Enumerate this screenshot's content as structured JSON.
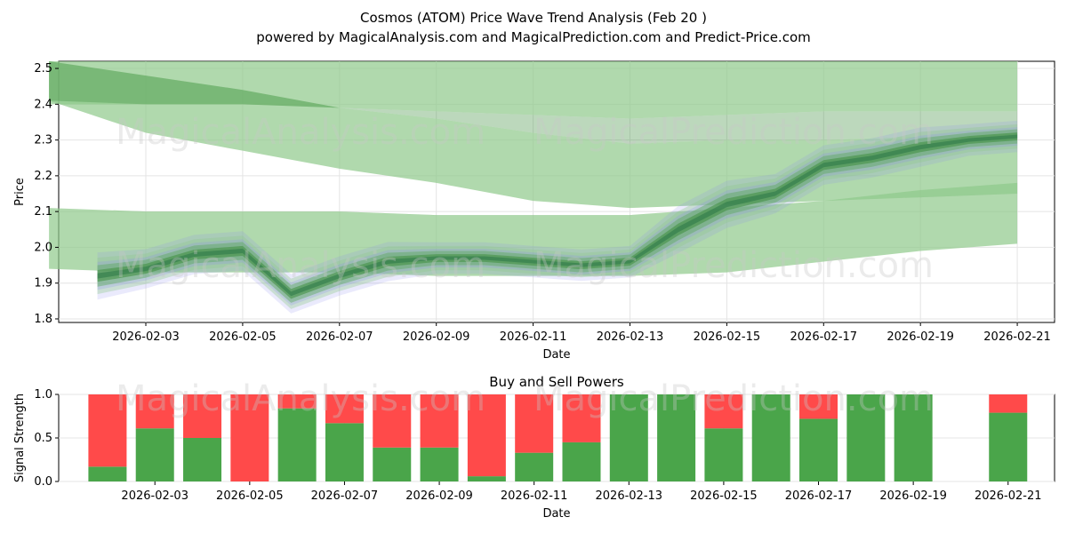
{
  "title_line1": "Cosmos (ATOM) Price Wave Trend Analysis (Feb 20 )",
  "title_line2": "powered by MagicalAnalysis.com and MagicalPrediction.com and Predict-Price.com",
  "watermarks": [
    "MagicalAnalysis.com",
    "MagicalPrediction.com"
  ],
  "colors": {
    "green_band": "#8fc98a",
    "dark_green": "#3e8e3e",
    "blue": "#8a8af0",
    "buy": "#4aa54a",
    "sell": "#ff4a4a"
  },
  "chart_data": [
    {
      "type": "area",
      "title": "Cosmos (ATOM) Price Wave Trend Analysis (Feb 20 )",
      "xlabel": "Date",
      "ylabel": "Price",
      "ylim": [
        1.79,
        2.52
      ],
      "xlim": [
        "2026-02-01",
        "2026-02-21"
      ],
      "yticks": [
        1.8,
        1.9,
        2.0,
        2.1,
        2.2,
        2.3,
        2.4,
        2.5
      ],
      "xticks": [
        "2026-02-03",
        "2026-02-05",
        "2026-02-07",
        "2026-02-09",
        "2026-02-11",
        "2026-02-13",
        "2026-02-15",
        "2026-02-17",
        "2026-02-19",
        "2026-02-21"
      ],
      "dates": [
        "2026-02-02",
        "2026-02-03",
        "2026-02-04",
        "2026-02-05",
        "2026-02-06",
        "2026-02-07",
        "2026-02-08",
        "2026-02-09",
        "2026-02-10",
        "2026-02-11",
        "2026-02-12",
        "2026-02-13",
        "2026-02-14",
        "2026-02-15",
        "2026-02-16",
        "2026-02-17",
        "2026-02-18",
        "2026-02-19",
        "2026-02-20",
        "2026-02-21"
      ],
      "price_wave": [
        1.92,
        1.94,
        1.98,
        1.99,
        1.87,
        1.92,
        1.96,
        1.97,
        1.97,
        1.96,
        1.95,
        1.96,
        2.05,
        2.12,
        2.15,
        2.23,
        2.25,
        2.28,
        2.3,
        2.31
      ],
      "wave_spread": [
        0.06,
        0.05,
        0.05,
        0.05,
        0.05,
        0.05,
        0.05,
        0.04,
        0.04,
        0.04,
        0.04,
        0.04,
        0.06,
        0.06,
        0.05,
        0.05,
        0.05,
        0.05,
        0.04,
        0.04
      ],
      "bands": [
        {
          "name": "upper band",
          "x": [
            "2026-02-01",
            "2026-02-03",
            "2026-02-05",
            "2026-02-07",
            "2026-02-09",
            "2026-02-11",
            "2026-02-13",
            "2026-02-15",
            "2026-02-17",
            "2026-02-19",
            "2026-02-21"
          ],
          "upper": [
            2.52,
            2.52,
            2.52,
            2.52,
            2.52,
            2.52,
            2.52,
            2.52,
            2.52,
            2.52,
            2.52
          ],
          "lower": [
            2.4,
            2.4,
            2.4,
            2.39,
            2.38,
            2.37,
            2.36,
            2.37,
            2.38,
            2.38,
            2.38
          ]
        },
        {
          "name": "descending band",
          "x": [
            "2026-02-01",
            "2026-02-03",
            "2026-02-05",
            "2026-02-07",
            "2026-02-09",
            "2026-02-11",
            "2026-02-13",
            "2026-02-15",
            "2026-02-17",
            "2026-02-19",
            "2026-02-21"
          ],
          "upper": [
            2.52,
            2.48,
            2.44,
            2.39,
            2.36,
            2.32,
            2.29,
            2.3,
            2.3,
            2.31,
            2.32
          ],
          "lower": [
            2.41,
            2.32,
            2.27,
            2.22,
            2.18,
            2.13,
            2.11,
            2.12,
            2.13,
            2.14,
            2.15
          ]
        },
        {
          "name": "lower band",
          "x": [
            "2026-02-01",
            "2026-02-03",
            "2026-02-05",
            "2026-02-07",
            "2026-02-09",
            "2026-02-11",
            "2026-02-13",
            "2026-02-15",
            "2026-02-17",
            "2026-02-19",
            "2026-02-21"
          ],
          "upper": [
            2.11,
            2.1,
            2.1,
            2.1,
            2.09,
            2.09,
            2.09,
            2.11,
            2.13,
            2.16,
            2.18
          ],
          "lower": [
            1.94,
            1.93,
            1.93,
            1.93,
            1.92,
            1.92,
            1.92,
            1.93,
            1.96,
            1.99,
            2.01
          ]
        }
      ]
    },
    {
      "type": "bar",
      "title": "Buy and Sell Powers",
      "xlabel": "Date",
      "ylabel": "Signal Strength",
      "ylim": [
        0,
        1.0
      ],
      "yticks": [
        "0.0",
        "0.5",
        "1.0"
      ],
      "xticks": [
        "2026-02-03",
        "2026-02-05",
        "2026-02-07",
        "2026-02-09",
        "2026-02-11",
        "2026-02-13",
        "2026-02-15",
        "2026-02-17",
        "2026-02-19",
        "2026-02-21"
      ],
      "categories": [
        "2026-02-02",
        "2026-02-03",
        "2026-02-04",
        "2026-02-05",
        "2026-02-06",
        "2026-02-07",
        "2026-02-08",
        "2026-02-09",
        "2026-02-10",
        "2026-02-11",
        "2026-02-12",
        "2026-02-13",
        "2026-02-14",
        "2026-02-15",
        "2026-02-16",
        "2026-02-17",
        "2026-02-18",
        "2026-02-19",
        "2026-02-21"
      ],
      "series": [
        {
          "name": "Buy",
          "values": [
            0.17,
            0.61,
            0.5,
            0.0,
            0.84,
            0.67,
            0.39,
            0.39,
            0.06,
            0.33,
            0.45,
            1.0,
            1.0,
            0.61,
            1.0,
            0.72,
            1.0,
            1.0,
            0.79
          ]
        },
        {
          "name": "Sell",
          "values": [
            0.83,
            0.39,
            0.5,
            1.0,
            0.16,
            0.33,
            0.61,
            0.61,
            0.94,
            0.67,
            0.55,
            0.0,
            0.0,
            0.39,
            0.0,
            0.28,
            0.0,
            0.0,
            0.21
          ]
        }
      ]
    }
  ]
}
